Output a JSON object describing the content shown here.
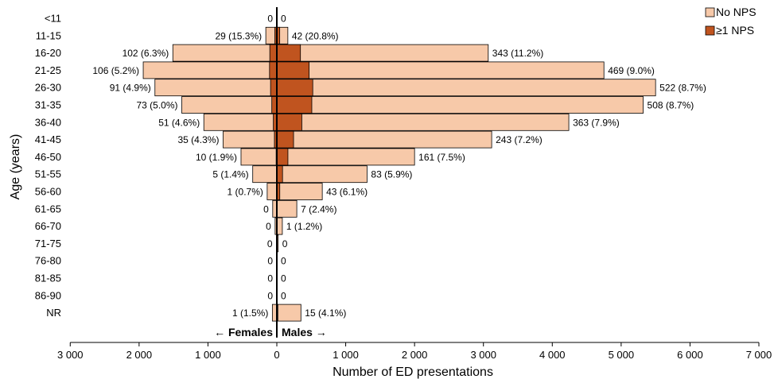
{
  "chart_data": {
    "type": "bar",
    "subtype": "population-pyramid",
    "xlabel": "Number of ED presentations",
    "ylabel": "Age (years)",
    "x_ticks": [
      "3 000",
      "2 000",
      "1 000",
      "0",
      "1 000",
      "2 000",
      "3 000",
      "4 000",
      "5 000",
      "6 000",
      "7 000"
    ],
    "xlim": [
      -3000,
      7000
    ],
    "side_labels": {
      "left": "← Females",
      "right": "Males →"
    },
    "legend": {
      "position": "top-right",
      "entries": [
        {
          "name": "No NPS",
          "color": "#f7c9a9"
        },
        {
          "name": "≥1 NPS",
          "color": "#c0541f"
        }
      ]
    },
    "categories": [
      "<11",
      "11-15",
      "16-20",
      "21-25",
      "26-30",
      "31-35",
      "36-40",
      "41-45",
      "46-50",
      "51-55",
      "56-60",
      "61-65",
      "66-70",
      "71-75",
      "76-80",
      "81-85",
      "86-90",
      "NR"
    ],
    "series": [
      {
        "name": "Females No NPS",
        "values": [
          0,
          160,
          1510,
          1940,
          1770,
          1380,
          1060,
          780,
          520,
          350,
          140,
          60,
          25,
          5,
          0,
          0,
          0,
          65
        ]
      },
      {
        "name": "Females ≥1 NPS",
        "values": [
          0,
          29,
          102,
          106,
          91,
          73,
          51,
          35,
          10,
          5,
          1,
          0,
          0,
          0,
          0,
          0,
          0,
          1
        ]
      },
      {
        "name": "Males No NPS",
        "values": [
          0,
          160,
          3070,
          4750,
          5500,
          5320,
          4240,
          3120,
          2000,
          1310,
          660,
          290,
          80,
          20,
          0,
          0,
          0,
          350
        ]
      },
      {
        "name": "Males ≥1 NPS",
        "values": [
          0,
          42,
          343,
          469,
          522,
          508,
          363,
          243,
          161,
          83,
          43,
          7,
          1,
          0,
          0,
          0,
          0,
          15
        ]
      }
    ],
    "female_labels": [
      "0",
      "29 (15.3%)",
      "102 (6.3%)",
      "106 (5.2%)",
      "91 (4.9%)",
      "73 (5.0%)",
      "51 (4.6%)",
      "35 (4.3%)",
      "10 (1.9%)",
      "5 (1.4%)",
      "1 (0.7%)",
      "0",
      "0",
      "0",
      "0",
      "0",
      "0",
      "1 (1.5%)"
    ],
    "male_labels": [
      "0",
      "42 (20.8%)",
      "343 (11.2%)",
      "469 (9.0%)",
      "522 (8.7%)",
      "508 (8.7%)",
      "363 (7.9%)",
      "243 (7.2%)",
      "161 (7.5%)",
      "83 (5.9%)",
      "43 (6.1%)",
      "7 (2.4%)",
      "1 (1.2%)",
      "0",
      "0",
      "0",
      "0",
      "15 (4.1%)"
    ]
  }
}
